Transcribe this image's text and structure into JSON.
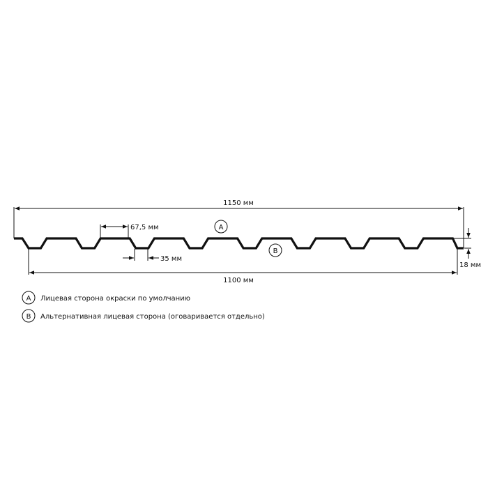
{
  "dimensions": {
    "total_width": "1150 мм",
    "useful_width": "1100 мм",
    "top_width": "67,5 мм",
    "bottom_width": "35 мм",
    "height": "18 мм"
  },
  "markers": {
    "a": "A",
    "b": "B"
  },
  "legend": [
    {
      "marker": "A",
      "text": "Лицевая сторона окраски по умолчанию"
    },
    {
      "marker": "B",
      "text": "Альтернативная лицевая сторона (оговаривается отдельно)"
    }
  ],
  "colors": {
    "line": "#111111",
    "background": "#ffffff"
  }
}
